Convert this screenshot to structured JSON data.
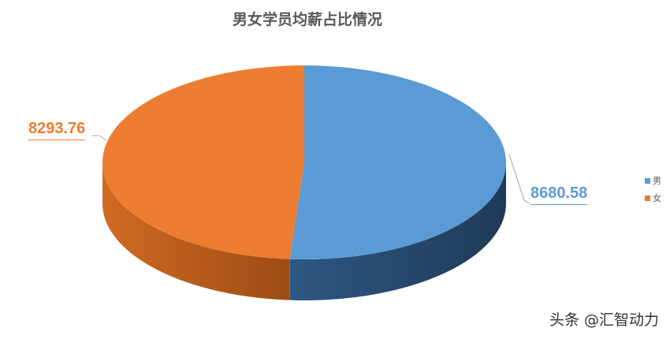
{
  "chart_data": {
    "type": "pie",
    "style": "3d",
    "title": "男女学员均薪占比情况",
    "categories": [
      "男",
      "女"
    ],
    "values": [
      8680.58,
      8293.76
    ],
    "data_labels": [
      "8680.58",
      "8293.76"
    ],
    "colors": [
      "#5b9bd5",
      "#ed7d31"
    ],
    "legend": "right"
  },
  "watermark": "头条 @汇智动力"
}
